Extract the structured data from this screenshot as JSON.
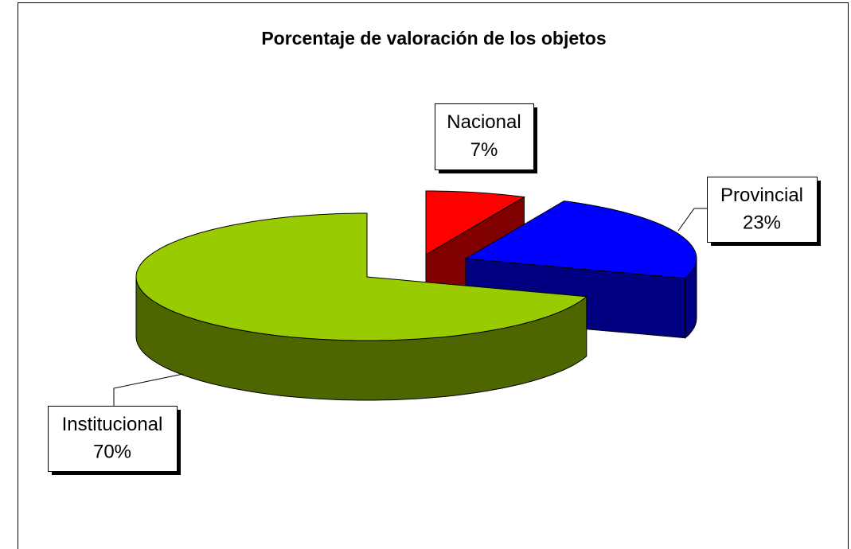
{
  "chart_data": {
    "type": "pie3d",
    "title": "Porcentaje de valoración de los objetos",
    "categories": [
      "Nacional",
      "Provincial",
      "Institucional"
    ],
    "values": [
      7,
      23,
      70
    ],
    "value_labels": [
      "7%",
      "23%",
      "70%"
    ],
    "colors": [
      "#ff0000",
      "#0000ff",
      "#99cc00"
    ],
    "side_colors": [
      "#800000",
      "#000080",
      "#4d6600"
    ]
  }
}
